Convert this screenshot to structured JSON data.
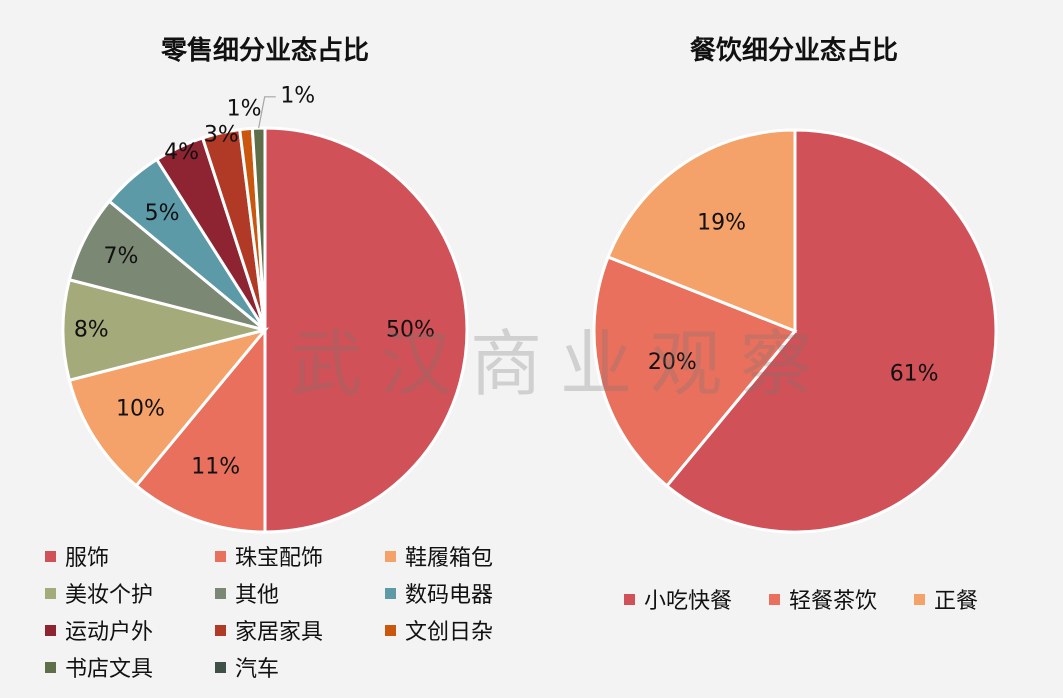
{
  "chart_data": [
    {
      "type": "pie",
      "title": "零售细分业态占比",
      "categories": [
        "服饰",
        "珠宝配饰",
        "鞋履箱包",
        "美妆个护",
        "其他",
        "数码电器",
        "运动户外",
        "家居家具",
        "文创日杂",
        "书店文具",
        "汽车"
      ],
      "values": [
        50,
        11,
        10,
        8,
        7,
        5,
        4,
        3,
        1,
        1,
        0
      ],
      "labels": [
        "50%",
        "11%",
        "10%",
        "8%",
        "7%",
        "5%",
        "4%",
        "3%",
        "1%",
        "1%",
        ""
      ],
      "colors": [
        "#d05157",
        "#e8705d",
        "#f4a269",
        "#a4aa7a",
        "#7b8874",
        "#5d9aa8",
        "#8e2332",
        "#b03a25",
        "#c9580e",
        "#5e6e48",
        "#3f5046"
      ],
      "legend": "bottom"
    },
    {
      "type": "pie",
      "title": "餐饮细分业态占比",
      "categories": [
        "小吃快餐",
        "轻餐茶饮",
        "正餐"
      ],
      "values": [
        61,
        20,
        19
      ],
      "labels": [
        "61%",
        "20%",
        "19%"
      ],
      "colors": [
        "#d05157",
        "#e8705d",
        "#f4a269"
      ],
      "legend": "bottom"
    }
  ],
  "watermark": "武汉商业观察"
}
